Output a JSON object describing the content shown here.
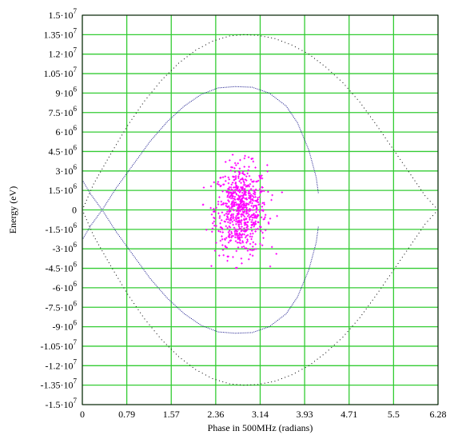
{
  "chart_data": {
    "type": "scatter",
    "xlabel": "Phase in 500MHz (radians)",
    "ylabel": "Energy (eV)",
    "xlim": [
      0,
      6.28
    ],
    "ylim": [
      -15000000,
      15000000
    ],
    "grid": true,
    "colors": {
      "grid": "#33cc33",
      "separatrix": "#000000",
      "bucket": "#1a1a8c",
      "particles": "#ff00ff",
      "frame": "#000000"
    },
    "x_ticks": [
      {
        "v": 0,
        "label": "0"
      },
      {
        "v": 0.785,
        "label": "0.79"
      },
      {
        "v": 1.57,
        "label": "1.57"
      },
      {
        "v": 2.355,
        "label": "2.36"
      },
      {
        "v": 3.14,
        "label": "3.14"
      },
      {
        "v": 3.925,
        "label": "3.93"
      },
      {
        "v": 4.71,
        "label": "4.71"
      },
      {
        "v": 5.495,
        "label": "5.5"
      },
      {
        "v": 6.28,
        "label": "6.28"
      }
    ],
    "y_ticks": [
      {
        "v": 15000000,
        "m": "1.5",
        "e": "7"
      },
      {
        "v": 13500000,
        "m": "1.35",
        "e": "7"
      },
      {
        "v": 12000000,
        "m": "1.2",
        "e": "7"
      },
      {
        "v": 10500000,
        "m": "1.05",
        "e": "7"
      },
      {
        "v": 9000000,
        "m": "9",
        "e": "6"
      },
      {
        "v": 7500000,
        "m": "7.5",
        "e": "6"
      },
      {
        "v": 6000000,
        "m": "6",
        "e": "6"
      },
      {
        "v": 4500000,
        "m": "4.5",
        "e": "6"
      },
      {
        "v": 3000000,
        "m": "3",
        "e": "6"
      },
      {
        "v": 1500000,
        "m": "1.5",
        "e": "6"
      },
      {
        "v": 0,
        "m": "0",
        "e": ""
      },
      {
        "v": -1500000,
        "m": "-1.5",
        "e": "6"
      },
      {
        "v": -3000000,
        "m": "-3",
        "e": "6"
      },
      {
        "v": -4500000,
        "m": "-4.5",
        "e": "6"
      },
      {
        "v": -6000000,
        "m": "-6",
        "e": "6"
      },
      {
        "v": -7500000,
        "m": "-7.5",
        "e": "6"
      },
      {
        "v": -9000000,
        "m": "-9",
        "e": "6"
      },
      {
        "v": -10500000,
        "m": "-1.05",
        "e": "7"
      },
      {
        "v": -12000000,
        "m": "-1.2",
        "e": "7"
      },
      {
        "v": -13500000,
        "m": "-1.35",
        "e": "7"
      },
      {
        "v": -15000000,
        "m": "-1.5",
        "e": "7"
      }
    ],
    "series": [
      {
        "style": "dotted-curve",
        "color": "#000000",
        "description_points": [
          [
            0.0,
            0
          ],
          [
            0.2,
            2000000
          ],
          [
            0.5,
            4300000
          ],
          [
            0.8,
            6500000
          ],
          [
            1.1,
            8400000
          ],
          [
            1.4,
            10000000
          ],
          [
            1.7,
            11300000
          ],
          [
            2.0,
            12300000
          ],
          [
            2.3,
            13000000
          ],
          [
            2.6,
            13400000
          ],
          [
            2.85,
            13500000
          ],
          [
            3.1,
            13450000
          ],
          [
            3.4,
            13200000
          ],
          [
            3.7,
            12700000
          ],
          [
            4.0,
            12000000
          ],
          [
            4.3,
            11000000
          ],
          [
            4.6,
            9800000
          ],
          [
            4.9,
            8300000
          ],
          [
            5.2,
            6500000
          ],
          [
            5.5,
            4600000
          ],
          [
            5.8,
            2700000
          ],
          [
            6.05,
            1100000
          ],
          [
            6.28,
            0
          ],
          [
            6.05,
            -1100000
          ],
          [
            5.8,
            -2700000
          ],
          [
            5.5,
            -4600000
          ],
          [
            5.2,
            -6500000
          ],
          [
            4.9,
            -8300000
          ],
          [
            4.6,
            -9800000
          ],
          [
            4.3,
            -11000000
          ],
          [
            4.0,
            -12000000
          ],
          [
            3.7,
            -12700000
          ],
          [
            3.4,
            -13200000
          ],
          [
            3.1,
            -13450000
          ],
          [
            2.85,
            -13500000
          ],
          [
            2.6,
            -13400000
          ],
          [
            2.3,
            -13000000
          ],
          [
            2.0,
            -12300000
          ],
          [
            1.7,
            -11300000
          ],
          [
            1.4,
            -10000000
          ],
          [
            1.1,
            -8400000
          ],
          [
            0.8,
            -6500000
          ],
          [
            0.5,
            -4300000
          ],
          [
            0.2,
            -2000000
          ],
          [
            0.0,
            0
          ]
        ]
      },
      {
        "style": "dotted-curve",
        "color": "#000000",
        "description_points": [
          [
            0.0,
            2300000
          ],
          [
            0.15,
            1200000
          ],
          [
            0.35,
            0
          ],
          [
            0.6,
            -1700000
          ],
          [
            0.9,
            -3500000
          ],
          [
            1.2,
            -5300000
          ],
          [
            1.5,
            -6800000
          ],
          [
            1.8,
            -8000000
          ],
          [
            2.1,
            -8900000
          ],
          [
            2.4,
            -9400000
          ],
          [
            2.7,
            -9500000
          ],
          [
            3.0,
            -9450000
          ],
          [
            3.3,
            -9000000
          ],
          [
            3.6,
            -8000000
          ],
          [
            3.8,
            -6700000
          ],
          [
            4.0,
            -4600000
          ],
          [
            4.13,
            -2500000
          ],
          [
            4.17,
            -1200000
          ]
        ]
      },
      {
        "style": "dotted-curve",
        "color": "#000000",
        "description_points": [
          [
            0.0,
            -2300000
          ],
          [
            0.15,
            -1200000
          ],
          [
            0.35,
            0
          ],
          [
            0.6,
            1700000
          ],
          [
            0.9,
            3500000
          ],
          [
            1.2,
            5300000
          ],
          [
            1.5,
            6800000
          ],
          [
            1.8,
            8000000
          ],
          [
            2.1,
            8900000
          ],
          [
            2.4,
            9400000
          ],
          [
            2.7,
            9500000
          ],
          [
            3.0,
            9450000
          ],
          [
            3.3,
            9000000
          ],
          [
            3.6,
            8000000
          ],
          [
            3.8,
            6700000
          ],
          [
            4.0,
            4600000
          ],
          [
            4.13,
            2500000
          ],
          [
            4.17,
            1200000
          ]
        ]
      }
    ],
    "particles": {
      "type": "scatter-cloud",
      "color": "#ff00ff",
      "center": [
        2.8,
        0
      ],
      "spread_x": 0.23,
      "spread_y": 1700000,
      "count": 700,
      "x_range": [
        2.0,
        3.6
      ],
      "y_range": [
        -4600000,
        4600000
      ]
    }
  }
}
